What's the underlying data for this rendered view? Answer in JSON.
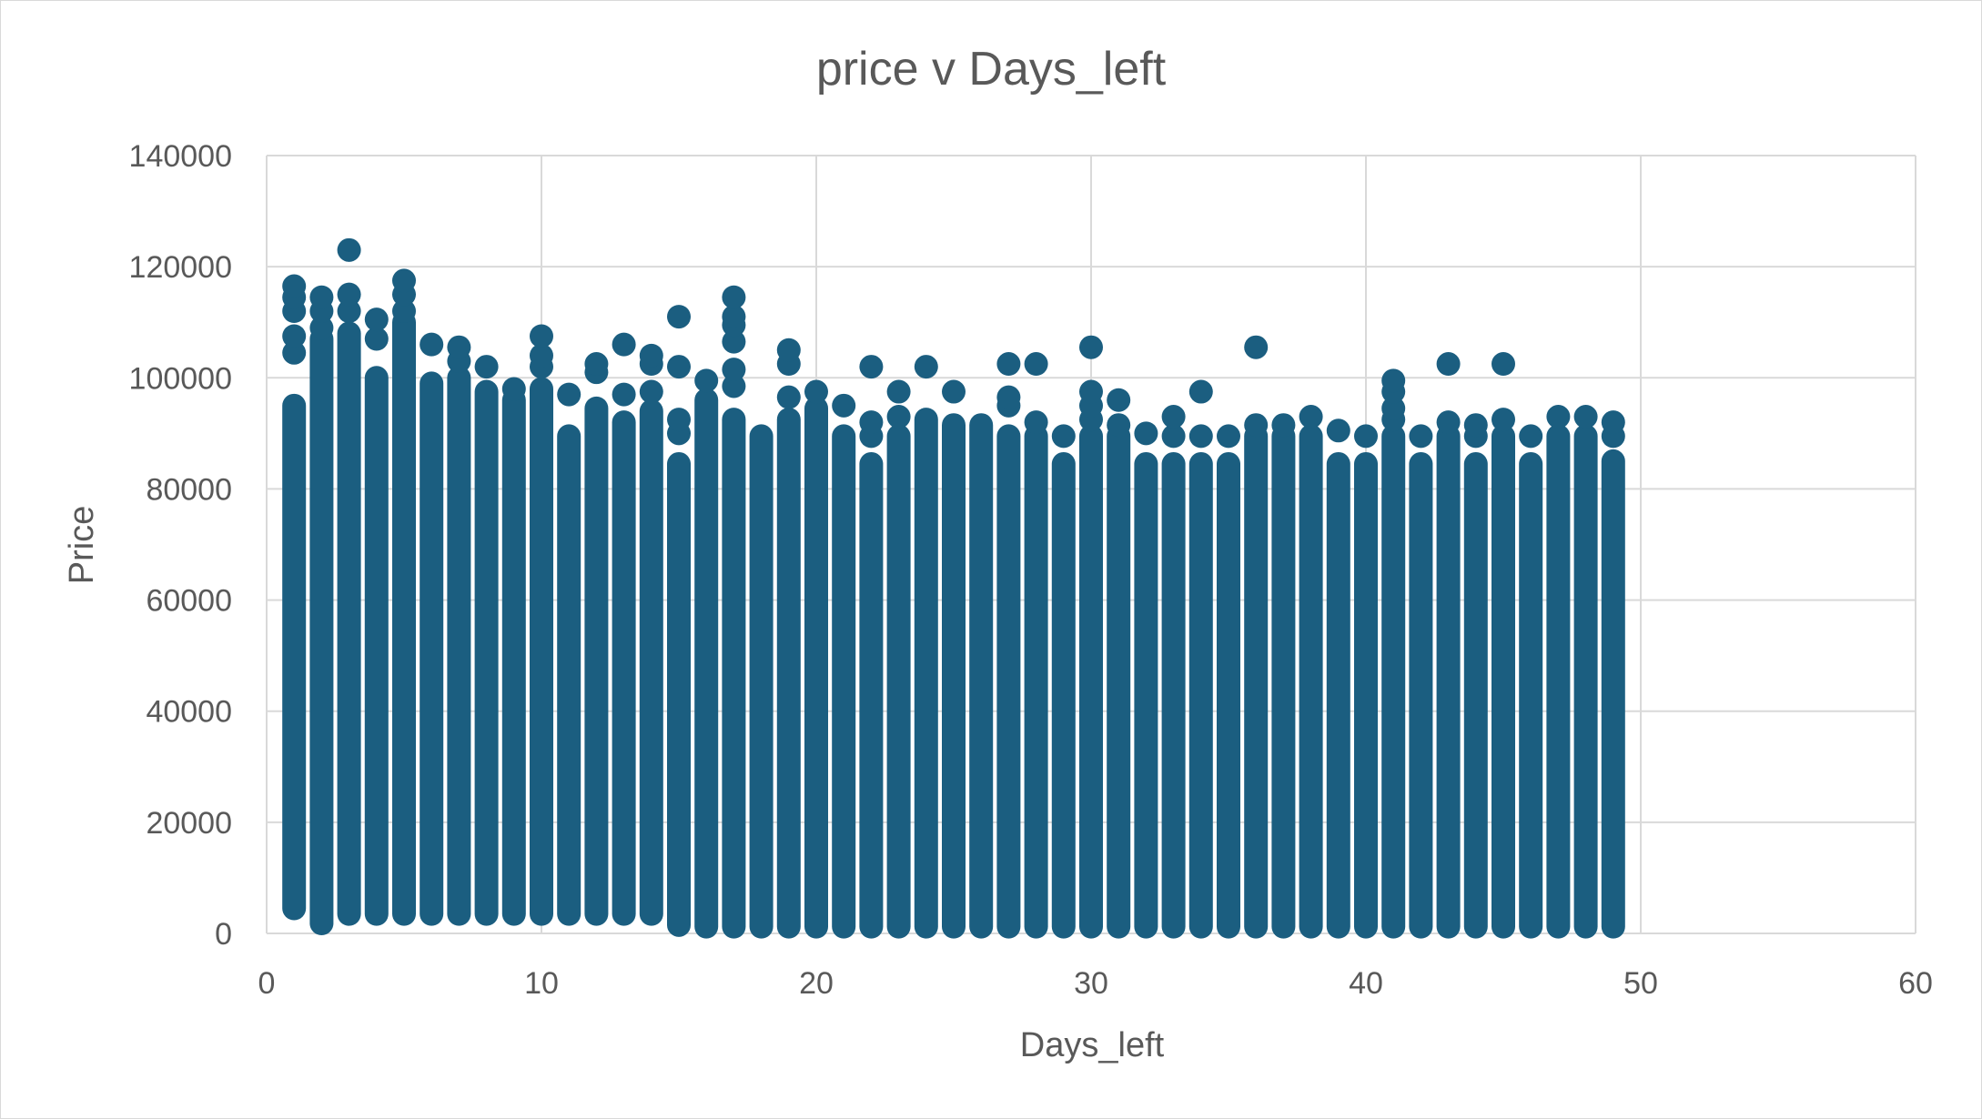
{
  "chart_data": {
    "type": "scatter",
    "title": "price v Days_left",
    "xlabel": "Days_left",
    "ylabel": "Price",
    "xlim": [
      0,
      60
    ],
    "ylim": [
      0,
      140000
    ],
    "x_ticks": [
      0,
      10,
      20,
      30,
      40,
      50,
      60
    ],
    "y_ticks": [
      0,
      20000,
      40000,
      60000,
      80000,
      100000,
      120000,
      140000
    ],
    "grid": true,
    "legend": "none",
    "marker_color": "#1b5e80",
    "columns": [
      {
        "x": 1,
        "min": 4500,
        "max": 95000,
        "outliers": [
          104500,
          107500,
          112000,
          114500,
          116500
        ]
      },
      {
        "x": 2,
        "min": 1800,
        "max": 107000,
        "outliers": [
          109000,
          112000,
          114500
        ]
      },
      {
        "x": 3,
        "min": 3500,
        "max": 108000,
        "outliers": [
          112000,
          115000,
          123000
        ]
      },
      {
        "x": 4,
        "min": 3500,
        "max": 100000,
        "outliers": [
          107000,
          110500
        ]
      },
      {
        "x": 5,
        "min": 3500,
        "max": 110000,
        "outliers": [
          112000,
          115000,
          117500
        ]
      },
      {
        "x": 6,
        "min": 3500,
        "max": 99000,
        "outliers": [
          106000
        ]
      },
      {
        "x": 7,
        "min": 3500,
        "max": 100000,
        "outliers": [
          103000,
          105500
        ]
      },
      {
        "x": 8,
        "min": 3500,
        "max": 97500,
        "outliers": [
          102000
        ]
      },
      {
        "x": 9,
        "min": 3500,
        "max": 96000,
        "outliers": [
          98000
        ]
      },
      {
        "x": 10,
        "min": 3500,
        "max": 98000,
        "outliers": [
          102000,
          104000,
          107500
        ]
      },
      {
        "x": 11,
        "min": 3500,
        "max": 89500,
        "outliers": [
          97000
        ]
      },
      {
        "x": 12,
        "min": 3500,
        "max": 94500,
        "outliers": [
          101000,
          102500
        ]
      },
      {
        "x": 13,
        "min": 3500,
        "max": 92000,
        "outliers": [
          97000,
          106000
        ]
      },
      {
        "x": 14,
        "min": 3500,
        "max": 94000,
        "outliers": [
          97500,
          102500,
          104000
        ]
      },
      {
        "x": 15,
        "min": 1500,
        "max": 84500,
        "outliers": [
          90000,
          92500,
          102000,
          111000
        ]
      },
      {
        "x": 16,
        "min": 1200,
        "max": 96000,
        "outliers": [
          99500
        ]
      },
      {
        "x": 17,
        "min": 1200,
        "max": 92500,
        "outliers": [
          98500,
          101500,
          106500,
          109500,
          111000,
          114500
        ]
      },
      {
        "x": 18,
        "min": 1200,
        "max": 89500,
        "outliers": []
      },
      {
        "x": 19,
        "min": 1200,
        "max": 92500,
        "outliers": [
          96500,
          102500,
          105000
        ]
      },
      {
        "x": 20,
        "min": 1200,
        "max": 94500,
        "outliers": [
          97500
        ]
      },
      {
        "x": 21,
        "min": 1200,
        "max": 89500,
        "outliers": [
          95000
        ]
      },
      {
        "x": 22,
        "min": 1200,
        "max": 84500,
        "outliers": [
          89500,
          92000,
          102000
        ]
      },
      {
        "x": 23,
        "min": 1200,
        "max": 89500,
        "outliers": [
          93000,
          97500
        ]
      },
      {
        "x": 24,
        "min": 1200,
        "max": 92500,
        "outliers": [
          102000
        ]
      },
      {
        "x": 25,
        "min": 1200,
        "max": 91500,
        "outliers": [
          97500
        ]
      },
      {
        "x": 26,
        "min": 1200,
        "max": 91500,
        "outliers": []
      },
      {
        "x": 27,
        "min": 1200,
        "max": 89500,
        "outliers": [
          95000,
          96500,
          102500
        ]
      },
      {
        "x": 28,
        "min": 1200,
        "max": 89500,
        "outliers": [
          92000,
          102500
        ]
      },
      {
        "x": 29,
        "min": 1200,
        "max": 84500,
        "outliers": [
          89500
        ]
      },
      {
        "x": 30,
        "min": 1200,
        "max": 89500,
        "outliers": [
          92500,
          95000,
          97500,
          105500
        ]
      },
      {
        "x": 31,
        "min": 1200,
        "max": 89500,
        "outliers": [
          91500,
          96000
        ]
      },
      {
        "x": 32,
        "min": 1200,
        "max": 84500,
        "outliers": [
          90000
        ]
      },
      {
        "x": 33,
        "min": 1200,
        "max": 84500,
        "outliers": [
          89500,
          93000
        ]
      },
      {
        "x": 34,
        "min": 1200,
        "max": 84500,
        "outliers": [
          89500,
          97500
        ]
      },
      {
        "x": 35,
        "min": 1200,
        "max": 84500,
        "outliers": [
          89500
        ]
      },
      {
        "x": 36,
        "min": 1200,
        "max": 89500,
        "outliers": [
          91500,
          105500
        ]
      },
      {
        "x": 37,
        "min": 1200,
        "max": 89500,
        "outliers": [
          91500
        ]
      },
      {
        "x": 38,
        "min": 1200,
        "max": 89500,
        "outliers": [
          93000
        ]
      },
      {
        "x": 39,
        "min": 1200,
        "max": 84500,
        "outliers": [
          90500
        ]
      },
      {
        "x": 40,
        "min": 1200,
        "max": 84500,
        "outliers": [
          89500
        ]
      },
      {
        "x": 41,
        "min": 1200,
        "max": 89500,
        "outliers": [
          92500,
          94500,
          97500,
          99500
        ]
      },
      {
        "x": 42,
        "min": 1200,
        "max": 84500,
        "outliers": [
          89500
        ]
      },
      {
        "x": 43,
        "min": 1200,
        "max": 89500,
        "outliers": [
          92000,
          102500
        ]
      },
      {
        "x": 44,
        "min": 1200,
        "max": 84500,
        "outliers": [
          89500,
          91500
        ]
      },
      {
        "x": 45,
        "min": 1200,
        "max": 89500,
        "outliers": [
          92500,
          102500
        ]
      },
      {
        "x": 46,
        "min": 1200,
        "max": 84500,
        "outliers": [
          89500
        ]
      },
      {
        "x": 47,
        "min": 1200,
        "max": 89500,
        "outliers": [
          93000
        ]
      },
      {
        "x": 48,
        "min": 1200,
        "max": 89500,
        "outliers": [
          93000
        ]
      },
      {
        "x": 49,
        "min": 1200,
        "max": 85000,
        "outliers": [
          89500,
          92000
        ]
      }
    ]
  }
}
